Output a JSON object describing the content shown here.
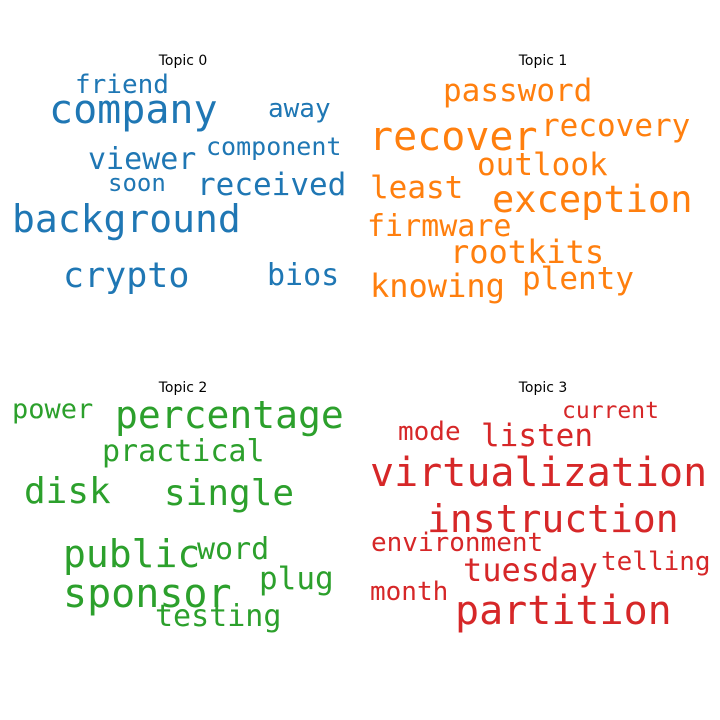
{
  "chart_data": {
    "type": "wordcloud",
    "panels": [
      {
        "title": "Topic 0",
        "color": "#1f77b4",
        "words": [
          {
            "text": "company",
            "weight": 1.0
          },
          {
            "text": "background",
            "weight": 0.94
          },
          {
            "text": "crypto",
            "weight": 0.88
          },
          {
            "text": "received",
            "weight": 0.78
          },
          {
            "text": "viewer",
            "weight": 0.76
          },
          {
            "text": "bios",
            "weight": 0.76
          },
          {
            "text": "away",
            "weight": 0.64
          },
          {
            "text": "friend",
            "weight": 0.64
          },
          {
            "text": "component",
            "weight": 0.62
          },
          {
            "text": "soon",
            "weight": 0.6
          }
        ]
      },
      {
        "title": "Topic 1",
        "color": "#ff7f0e",
        "words": [
          {
            "text": "recover",
            "weight": 1.0
          },
          {
            "text": "exception",
            "weight": 0.92
          },
          {
            "text": "rootkits",
            "weight": 0.8
          },
          {
            "text": "knowing",
            "weight": 0.8
          },
          {
            "text": "recovery",
            "weight": 0.78
          },
          {
            "text": "outlook",
            "weight": 0.78
          },
          {
            "text": "password",
            "weight": 0.78
          },
          {
            "text": "least",
            "weight": 0.78
          },
          {
            "text": "plenty",
            "weight": 0.78
          },
          {
            "text": "firmware",
            "weight": 0.76
          }
        ]
      },
      {
        "title": "Topic 2",
        "color": "#2ca02c",
        "words": [
          {
            "text": "sponsor",
            "weight": 1.0
          },
          {
            "text": "percentage",
            "weight": 0.94
          },
          {
            "text": "public",
            "weight": 0.94
          },
          {
            "text": "single",
            "weight": 0.9
          },
          {
            "text": "disk",
            "weight": 0.9
          },
          {
            "text": "plug",
            "weight": 0.78
          },
          {
            "text": "practical",
            "weight": 0.76
          },
          {
            "text": "word",
            "weight": 0.76
          },
          {
            "text": "testing",
            "weight": 0.76
          },
          {
            "text": "power",
            "weight": 0.68
          }
        ]
      },
      {
        "title": "Topic 3",
        "color": "#d62728",
        "words": [
          {
            "text": "virtualization",
            "weight": 1.0
          },
          {
            "text": "partition",
            "weight": 1.0
          },
          {
            "text": "instruction",
            "weight": 0.94
          },
          {
            "text": "tuesday",
            "weight": 0.8
          },
          {
            "text": "listen",
            "weight": 0.78
          },
          {
            "text": "environment",
            "weight": 0.66
          },
          {
            "text": "mode",
            "weight": 0.64
          },
          {
            "text": "telling",
            "weight": 0.64
          },
          {
            "text": "month",
            "weight": 0.64
          },
          {
            "text": "current",
            "weight": 0.58
          }
        ]
      }
    ]
  }
}
